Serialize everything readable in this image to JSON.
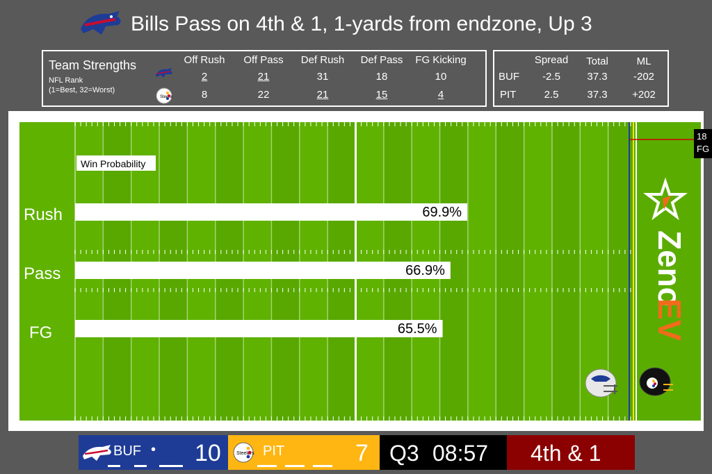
{
  "title": "Bills Pass on 4th & 1, 1-yards from endzone, Up 3",
  "strengths": {
    "title": "Team Strengths",
    "subtitle_1": "NFL Rank",
    "subtitle_2": "(1=Best, 32=Worst)",
    "headers": [
      "Off Rush",
      "Off Pass",
      "Def Rush",
      "Def Pass",
      "FG Kicking"
    ],
    "buf": [
      "2",
      "21",
      "31",
      "18",
      "10"
    ],
    "pit": [
      "8",
      "22",
      "21",
      "15",
      "4"
    ]
  },
  "odds": {
    "headers": [
      "Spread",
      "Total",
      "ML"
    ],
    "buf": {
      "team": "BUF",
      "spread": "-2.5",
      "total": "37.3",
      "ml": "-202"
    },
    "pit": {
      "team": "PIT",
      "spread": "2.5",
      "total": "37.3",
      "ml": "+202"
    }
  },
  "fg_tag": {
    "line1": "18",
    "line2": "FG"
  },
  "brand": {
    "part1": "Zeno",
    "part2": "EV"
  },
  "chart_data": {
    "type": "bar",
    "title": "Win Probability",
    "categories": [
      "Rush",
      "Pass",
      "FG"
    ],
    "values": [
      69.9,
      66.9,
      65.5
    ],
    "value_labels": [
      "69.9%",
      "66.9%",
      "65.5%"
    ],
    "xlim": [
      0,
      100
    ],
    "orientation": "horizontal"
  },
  "scoreboard": {
    "buf": {
      "abbr": "BUF",
      "score": "10",
      "possession": "•"
    },
    "pit": {
      "abbr": "PIT",
      "score": "7"
    },
    "quarter": "Q3",
    "clock": "08:57",
    "down": "4th & 1"
  },
  "colors": {
    "field_green": "#5fb200",
    "bills_blue": "#1e3c96",
    "steelers_gold": "#ffb612",
    "down_red": "#8b0000",
    "zeno_orange": "#f26a1b"
  }
}
